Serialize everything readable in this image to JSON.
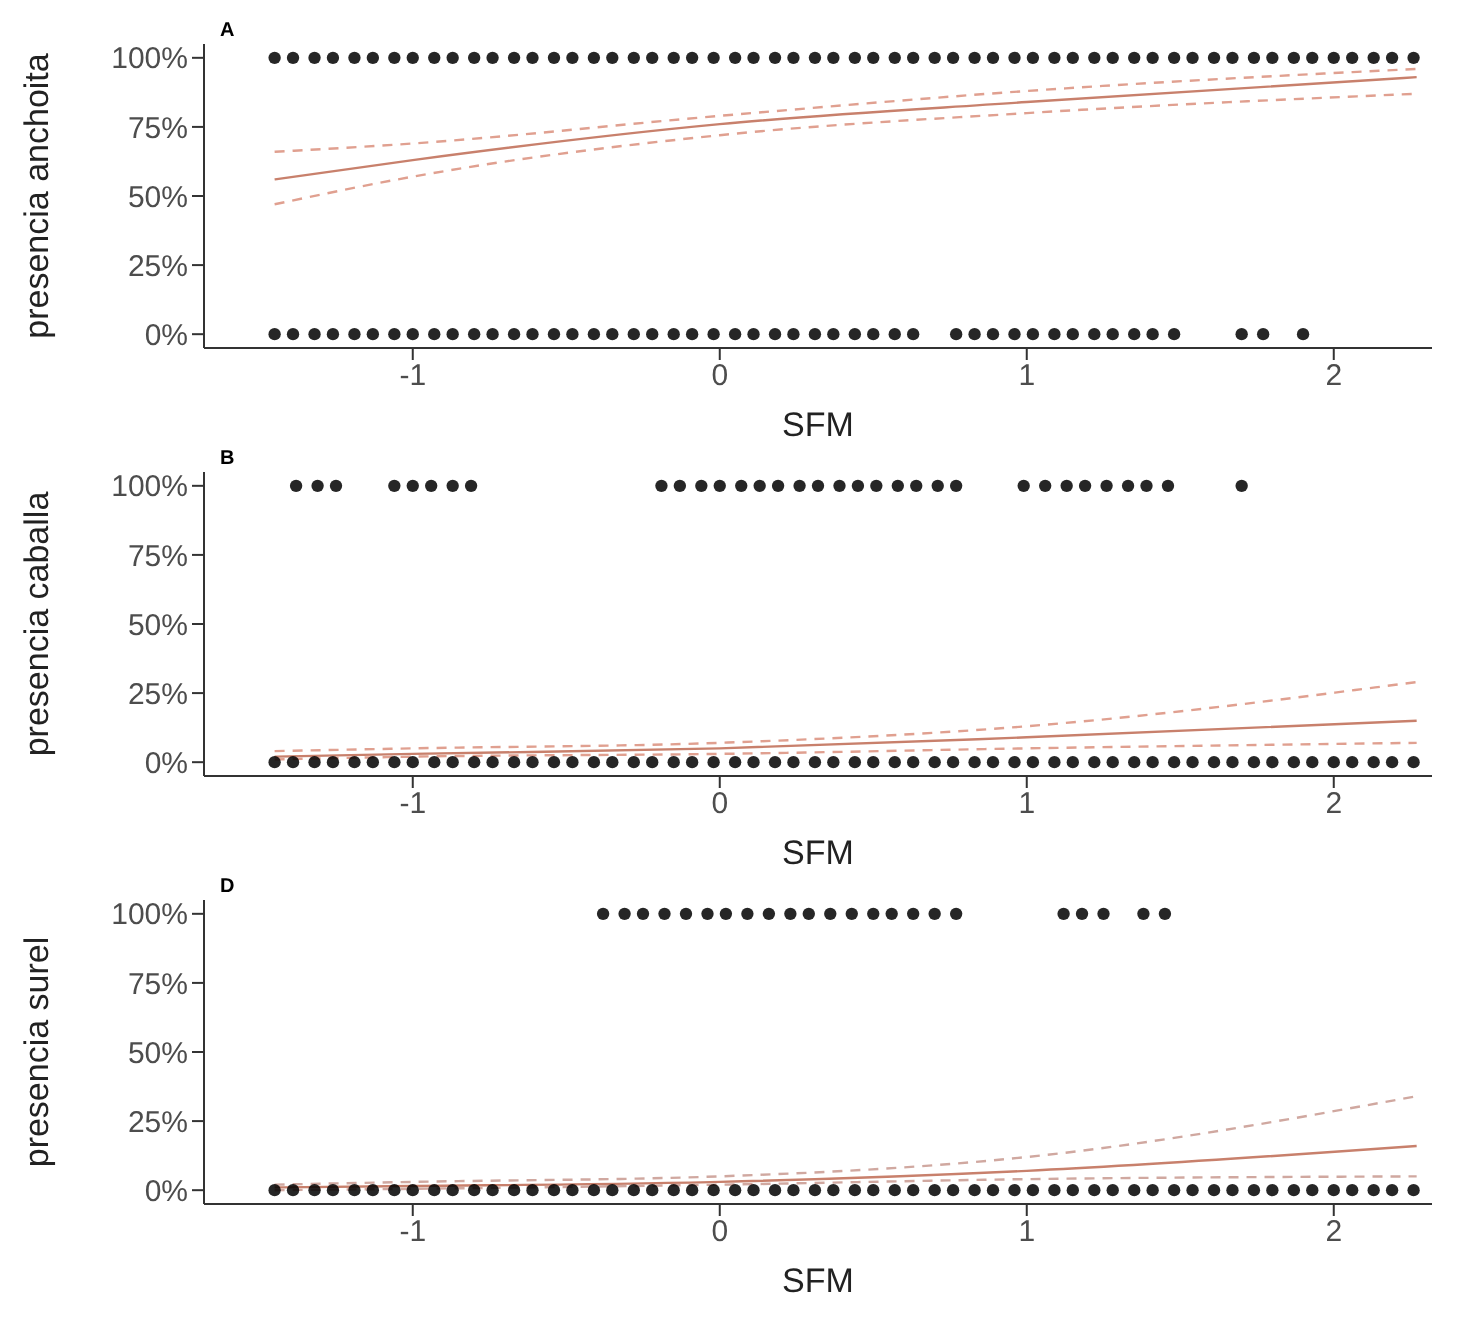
{
  "chart_data": [
    {
      "type": "scatter",
      "title": "A",
      "xlabel": "SFM",
      "ylabel": "presencia anchoita",
      "xlim": [
        -1.68,
        2.32
      ],
      "xticks": [
        -1,
        0,
        1,
        2
      ],
      "ylim": [
        -5,
        105
      ],
      "yticks": [
        {
          "value": 0,
          "label": "0%"
        },
        {
          "value": 25,
          "label": "25%"
        },
        {
          "value": 50,
          "label": "50%"
        },
        {
          "value": 75,
          "label": "75%"
        },
        {
          "value": 100,
          "label": "100%"
        }
      ],
      "series": [
        {
          "type": "scatter",
          "marker": "circle",
          "color": "#000000",
          "x": [
            -1.45,
            -1.39,
            -1.32,
            -1.26,
            -1.19,
            -1.13,
            -1.06,
            -1.0,
            -0.93,
            -0.87,
            -0.8,
            -0.74,
            -0.67,
            -0.61,
            -0.54,
            -0.48,
            -0.41,
            -0.35,
            -0.28,
            -0.22,
            -0.15,
            -0.09,
            -0.02,
            0.05,
            0.11,
            0.18,
            0.24,
            0.31,
            0.37,
            0.44,
            0.5,
            0.57,
            0.63,
            0.7,
            0.76,
            0.83,
            0.89,
            0.96,
            1.02,
            1.09,
            1.15,
            1.22,
            1.28,
            1.35,
            1.41,
            1.48,
            1.54,
            1.61,
            1.67,
            1.74,
            1.8,
            1.87,
            1.93,
            2.0,
            2.06,
            2.13,
            2.19,
            2.26
          ],
          "values": [
            100,
            100,
            100,
            100,
            100,
            100,
            100,
            100,
            100,
            100,
            100,
            100,
            100,
            100,
            100,
            100,
            100,
            100,
            100,
            100,
            100,
            100,
            100,
            100,
            100,
            100,
            100,
            100,
            100,
            100,
            100,
            100,
            100,
            100,
            100,
            100,
            100,
            100,
            100,
            100,
            100,
            100,
            100,
            100,
            100,
            100,
            100,
            100,
            100,
            100,
            100,
            100,
            100,
            100,
            100,
            100,
            100,
            100
          ]
        },
        {
          "type": "scatter",
          "marker": "circle",
          "color": "#000000",
          "x": [
            -1.45,
            -1.39,
            -1.32,
            -1.26,
            -1.19,
            -1.13,
            -1.06,
            -1.0,
            -0.93,
            -0.87,
            -0.8,
            -0.74,
            -0.67,
            -0.61,
            -0.54,
            -0.48,
            -0.41,
            -0.35,
            -0.28,
            -0.22,
            -0.15,
            -0.09,
            -0.02,
            0.05,
            0.11,
            0.18,
            0.24,
            0.31,
            0.37,
            0.44,
            0.5,
            0.57,
            0.63,
            0.77,
            0.83,
            0.89,
            0.96,
            1.02,
            1.09,
            1.15,
            1.22,
            1.28,
            1.35,
            1.41,
            1.48,
            1.7,
            1.77,
            1.9
          ],
          "values": [
            0,
            0,
            0,
            0,
            0,
            0,
            0,
            0,
            0,
            0,
            0,
            0,
            0,
            0,
            0,
            0,
            0,
            0,
            0,
            0,
            0,
            0,
            0,
            0,
            0,
            0,
            0,
            0,
            0,
            0,
            0,
            0,
            0,
            0,
            0,
            0,
            0,
            0,
            0,
            0,
            0,
            0,
            0,
            0,
            0,
            0,
            0,
            0
          ]
        },
        {
          "type": "line",
          "marker": "none",
          "line_style": "solid",
          "color": "#c8806c",
          "x": [
            -1.45,
            -1,
            0,
            1,
            2.27
          ],
          "values": [
            56,
            63,
            76,
            84,
            93
          ]
        },
        {
          "type": "line",
          "marker": "none",
          "line_style": "dashed",
          "color": "#e0a090",
          "x": [
            -1.45,
            -1,
            0,
            1,
            2.27
          ],
          "values": [
            66,
            69,
            79,
            88,
            96
          ]
        },
        {
          "type": "line",
          "marker": "none",
          "line_style": "dashed",
          "color": "#e0a090",
          "x": [
            -1.45,
            -1,
            0,
            1,
            2.27
          ],
          "values": [
            47,
            57,
            72,
            80,
            87
          ]
        }
      ]
    },
    {
      "type": "scatter",
      "title": "B",
      "xlabel": "SFM",
      "ylabel": "presencia caballa",
      "xlim": [
        -1.68,
        2.32
      ],
      "xticks": [
        -1,
        0,
        1,
        2
      ],
      "ylim": [
        -5,
        105
      ],
      "yticks": [
        {
          "value": 0,
          "label": "0%"
        },
        {
          "value": 25,
          "label": "25%"
        },
        {
          "value": 50,
          "label": "50%"
        },
        {
          "value": 75,
          "label": "75%"
        },
        {
          "value": 100,
          "label": "100%"
        }
      ],
      "series": [
        {
          "type": "scatter",
          "marker": "circle",
          "color": "#000000",
          "x": [
            -1.38,
            -1.31,
            -1.25,
            -1.06,
            -1.0,
            -0.94,
            -0.87,
            -0.81,
            -0.19,
            -0.13,
            -0.06,
            0.0,
            0.07,
            0.13,
            0.19,
            0.26,
            0.32,
            0.39,
            0.45,
            0.51,
            0.58,
            0.64,
            0.71,
            0.77,
            0.99,
            1.06,
            1.13,
            1.19,
            1.26,
            1.33,
            1.39,
            1.46,
            1.7
          ],
          "values": [
            100,
            100,
            100,
            100,
            100,
            100,
            100,
            100,
            100,
            100,
            100,
            100,
            100,
            100,
            100,
            100,
            100,
            100,
            100,
            100,
            100,
            100,
            100,
            100,
            100,
            100,
            100,
            100,
            100,
            100,
            100,
            100,
            100
          ]
        },
        {
          "type": "scatter",
          "marker": "circle",
          "color": "#000000",
          "x": [
            -1.45,
            -1.39,
            -1.32,
            -1.26,
            -1.19,
            -1.13,
            -1.06,
            -1.0,
            -0.93,
            -0.87,
            -0.8,
            -0.74,
            -0.67,
            -0.61,
            -0.54,
            -0.48,
            -0.41,
            -0.35,
            -0.28,
            -0.22,
            -0.15,
            -0.09,
            -0.02,
            0.05,
            0.11,
            0.18,
            0.24,
            0.31,
            0.37,
            0.44,
            0.5,
            0.57,
            0.63,
            0.7,
            0.76,
            0.83,
            0.89,
            0.96,
            1.02,
            1.09,
            1.15,
            1.22,
            1.28,
            1.35,
            1.41,
            1.48,
            1.54,
            1.61,
            1.67,
            1.74,
            1.8,
            1.87,
            1.93,
            2.0,
            2.06,
            2.13,
            2.19,
            2.26
          ],
          "values": [
            0,
            0,
            0,
            0,
            0,
            0,
            0,
            0,
            0,
            0,
            0,
            0,
            0,
            0,
            0,
            0,
            0,
            0,
            0,
            0,
            0,
            0,
            0,
            0,
            0,
            0,
            0,
            0,
            0,
            0,
            0,
            0,
            0,
            0,
            0,
            0,
            0,
            0,
            0,
            0,
            0,
            0,
            0,
            0,
            0,
            0,
            0,
            0,
            0,
            0,
            0,
            0,
            0,
            0,
            0,
            0,
            0,
            0
          ]
        },
        {
          "type": "line",
          "marker": "none",
          "line_style": "solid",
          "color": "#c8806c",
          "x": [
            -1.45,
            -1,
            0,
            1,
            2.27
          ],
          "values": [
            2,
            3,
            5,
            9,
            15
          ]
        },
        {
          "type": "line",
          "marker": "none",
          "line_style": "dashed",
          "color": "#e0a090",
          "x": [
            -1.45,
            -1,
            0,
            1,
            2.27
          ],
          "values": [
            4,
            5,
            7,
            13,
            29
          ]
        },
        {
          "type": "line",
          "marker": "none",
          "line_style": "dashed",
          "color": "#e0a090",
          "x": [
            -1.45,
            -1,
            0,
            1,
            2.27
          ],
          "values": [
            1,
            2,
            3,
            5,
            7
          ]
        }
      ]
    },
    {
      "type": "scatter",
      "title": "D",
      "xlabel": "SFM",
      "ylabel": "presencia surel",
      "xlim": [
        -1.68,
        2.32
      ],
      "xticks": [
        -1,
        0,
        1,
        2
      ],
      "ylim": [
        -5,
        105
      ],
      "yticks": [
        {
          "value": 0,
          "label": "0%"
        },
        {
          "value": 25,
          "label": "25%"
        },
        {
          "value": 50,
          "label": "50%"
        },
        {
          "value": 75,
          "label": "75%"
        },
        {
          "value": 100,
          "label": "100%"
        }
      ],
      "series": [
        {
          "type": "scatter",
          "marker": "circle",
          "color": "#000000",
          "x": [
            -0.38,
            -0.31,
            -0.25,
            -0.18,
            -0.11,
            -0.04,
            0.02,
            0.09,
            0.16,
            0.23,
            0.29,
            0.36,
            0.43,
            0.5,
            0.56,
            0.63,
            0.7,
            0.77,
            1.12,
            1.18,
            1.25,
            1.38,
            1.45
          ],
          "values": [
            100,
            100,
            100,
            100,
            100,
            100,
            100,
            100,
            100,
            100,
            100,
            100,
            100,
            100,
            100,
            100,
            100,
            100,
            100,
            100,
            100,
            100,
            100
          ]
        },
        {
          "type": "scatter",
          "marker": "circle",
          "color": "#000000",
          "x": [
            -1.45,
            -1.39,
            -1.32,
            -1.26,
            -1.19,
            -1.13,
            -1.06,
            -1.0,
            -0.93,
            -0.87,
            -0.8,
            -0.74,
            -0.67,
            -0.61,
            -0.54,
            -0.48,
            -0.41,
            -0.35,
            -0.28,
            -0.22,
            -0.15,
            -0.09,
            -0.02,
            0.05,
            0.11,
            0.18,
            0.24,
            0.31,
            0.37,
            0.44,
            0.5,
            0.57,
            0.63,
            0.7,
            0.76,
            0.83,
            0.89,
            0.96,
            1.02,
            1.09,
            1.15,
            1.22,
            1.28,
            1.35,
            1.41,
            1.48,
            1.54,
            1.61,
            1.67,
            1.74,
            1.8,
            1.87,
            1.93,
            2.0,
            2.06,
            2.13,
            2.19,
            2.26
          ],
          "values": [
            0,
            0,
            0,
            0,
            0,
            0,
            0,
            0,
            0,
            0,
            0,
            0,
            0,
            0,
            0,
            0,
            0,
            0,
            0,
            0,
            0,
            0,
            0,
            0,
            0,
            0,
            0,
            0,
            0,
            0,
            0,
            0,
            0,
            0,
            0,
            0,
            0,
            0,
            0,
            0,
            0,
            0,
            0,
            0,
            0,
            0,
            0,
            0,
            0,
            0,
            0,
            0,
            0,
            0,
            0,
            0,
            0,
            0
          ]
        },
        {
          "type": "line",
          "marker": "none",
          "line_style": "solid",
          "color": "#c8806c",
          "x": [
            -1.45,
            -1,
            0,
            1,
            2.27
          ],
          "values": [
            1,
            1.5,
            3,
            7,
            16
          ]
        },
        {
          "type": "line",
          "marker": "none",
          "line_style": "dashed",
          "color": "#d0a8a0",
          "x": [
            -1.45,
            -1,
            0,
            1,
            2.27
          ],
          "values": [
            2,
            3,
            5,
            12,
            34
          ]
        },
        {
          "type": "line",
          "marker": "none",
          "line_style": "dashed",
          "color": "#d0a8a0",
          "x": [
            -1.45,
            -1,
            0,
            1,
            2.27
          ],
          "values": [
            0,
            0.5,
            2,
            4,
            5
          ]
        }
      ]
    }
  ]
}
